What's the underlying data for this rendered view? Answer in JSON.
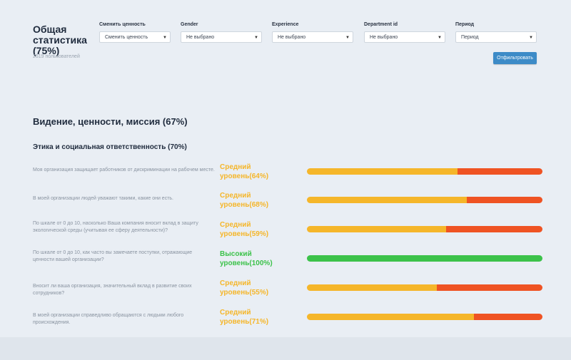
{
  "header": {
    "title": "Общая статистика (75%)",
    "subtitle": "2519 пользователей"
  },
  "filters": [
    {
      "label": "Сменить ценность",
      "value": "Сменить ценность"
    },
    {
      "label": "Gender",
      "value": "Не выбрано"
    },
    {
      "label": "Experience",
      "value": "Не выбрано"
    },
    {
      "label": "Department id",
      "value": "Не выбрано"
    },
    {
      "label": "Период",
      "value": "Период"
    }
  ],
  "apply_label": "Отфильтровать",
  "section_title": "Видение, ценности, миссия (67%)",
  "subsection_title": "Этика и социальная ответственность (70%)",
  "colors": {
    "medium": "#f5b62a",
    "low": "#ef5323",
    "high": "#3cc24a",
    "accent": "#3d8bc7"
  },
  "questions": [
    {
      "text": "Моя организация защищает работников от дискриминации на рабочем месте.",
      "level": "Средний уровень(64%)",
      "score": 0.64,
      "tier": "medium"
    },
    {
      "text": "В моей организации людей уважают такими, какие они есть.",
      "level": "Средний уровень(68%)",
      "score": 0.68,
      "tier": "medium"
    },
    {
      "text": "По шкале от 0 до 10, насколько Ваша компания вносит вклад в защиту экологической среды (учитывая ее сферу деятельности)?",
      "level": "Средний уровень(59%)",
      "score": 0.59,
      "tier": "medium"
    },
    {
      "text": "По шкале от 0 до 10, как часто вы замечаете поступки, отражающие ценности вашей организации?",
      "level": "Высокий уровень(100%)",
      "score": 1.0,
      "tier": "high"
    },
    {
      "text": "Вносит ли ваша организация, значительный вклад в развитие своих сотрудников?",
      "level": "Средний уровень(55%)",
      "score": 0.55,
      "tier": "medium"
    },
    {
      "text": "В моей организации справедливо обращаются с людьми любого происхождения.",
      "level": "Средний уровень(71%)",
      "score": 0.71,
      "tier": "medium"
    }
  ]
}
